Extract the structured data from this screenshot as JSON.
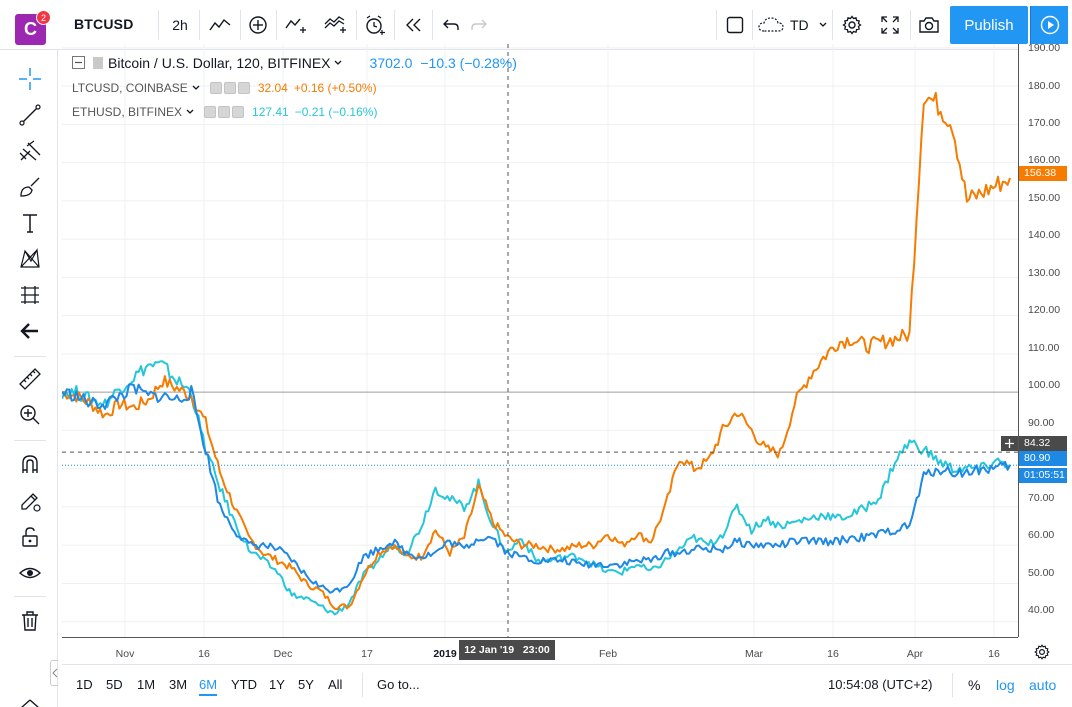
{
  "topbar": {
    "logo_letter": "C",
    "notif_count": "2",
    "symbol": "BTCUSD",
    "interval": "2h",
    "layout_name": "TD",
    "publish_label": "Publish"
  },
  "legend": {
    "main_title": "Bitcoin / U.S. Dollar, 120, BITFINEX",
    "main_value": "3702.0",
    "main_change": "−10.3 (−0.28%)",
    "series": [
      {
        "name": "LTCUSD, COINBASE",
        "value": "32.04",
        "change": "+0.16 (+0.50%)",
        "color": "#f57f17"
      },
      {
        "name": "ETHUSD, BITFINEX",
        "value": "127.41",
        "change": "−0.21 (−0.16%)",
        "color": "#26c6da"
      }
    ]
  },
  "price_axis": {
    "ticks": [
      "190.00",
      "180.00",
      "170.00",
      "160.00",
      "150.00",
      "140.00",
      "130.00",
      "120.00",
      "110.00",
      "100.00",
      "90.00",
      "80.00",
      "70.00",
      "60.00",
      "50.00",
      "40.00"
    ],
    "labels": {
      "ltc_last": "156.38",
      "crosshair": "84.32",
      "btc_last": "80.90",
      "countdown": "01:05:51"
    }
  },
  "time_axis": {
    "ticks": [
      "Nov",
      "16",
      "Dec",
      "17",
      "2019",
      "Feb",
      "Mar",
      "16",
      "Apr",
      "16"
    ],
    "crosshair_label": "12 Jan '19   23:00"
  },
  "bottom": {
    "ranges": [
      "1D",
      "5D",
      "1M",
      "3M",
      "6M",
      "YTD",
      "1Y",
      "5Y",
      "All"
    ],
    "active_range": "6M",
    "goto_label": "Go to...",
    "clock": "10:54:08 (UTC+2)",
    "percent_label": "%",
    "log_label": "log",
    "auto_label": "auto"
  },
  "colors": {
    "btc": "#1e88e5",
    "ltc": "#f57c00",
    "eth": "#26c6da",
    "accent": "#2196f3"
  },
  "chart_data": {
    "type": "line",
    "ylabel": "",
    "ylim": [
      36,
      191
    ],
    "x_ticks": [
      "Nov",
      "16",
      "Dec",
      "17",
      "2019",
      "Feb",
      "Mar",
      "16",
      "Apr",
      "16"
    ],
    "series": [
      {
        "name": "LTCUSD, COINBASE",
        "color": "#f57c00",
        "values": [
          100,
          99,
          97,
          94,
          97,
          96,
          98,
          103,
          101,
          99,
          92,
          79,
          70,
          62,
          58,
          56,
          54,
          50,
          48,
          44,
          44,
          52,
          58,
          60,
          57,
          57,
          64,
          58,
          62,
          75,
          66,
          62,
          60,
          60,
          59,
          59,
          60,
          60,
          63,
          60,
          63,
          61,
          70,
          83,
          80,
          82,
          90,
          95,
          90,
          85,
          84,
          97,
          104,
          109,
          113,
          114,
          112,
          113,
          114,
          115,
          178,
          175,
          170,
          150,
          152,
          154,
          156
        ]
      },
      {
        "name": "ETHUSD, BITFINEX",
        "color": "#26c6da",
        "values": [
          100,
          100,
          98,
          97,
          101,
          104,
          107,
          107,
          103,
          100,
          85,
          75,
          66,
          59,
          56,
          53,
          47,
          46,
          44,
          42,
          45,
          52,
          56,
          60,
          58,
          65,
          75,
          72,
          70,
          76,
          65,
          58,
          62,
          56,
          56,
          57,
          57,
          55,
          53,
          53,
          55,
          53,
          56,
          59,
          62,
          60,
          63,
          70,
          64,
          67,
          65,
          66,
          67,
          68,
          67,
          68,
          70,
          73,
          82,
          87,
          85,
          82,
          80,
          80,
          80,
          82,
          81
        ]
      },
      {
        "name": "BTCUSD",
        "color": "#1e88e5",
        "values": [
          100,
          99,
          97,
          97,
          99,
          101,
          99,
          99,
          98,
          100,
          85,
          70,
          64,
          60,
          60,
          59,
          56,
          52,
          49,
          48,
          50,
          57,
          59,
          61,
          58,
          57,
          58,
          61,
          59,
          62,
          62,
          58,
          57,
          56,
          56,
          56,
          55,
          55,
          55,
          55,
          56,
          56,
          58,
          58,
          59,
          59,
          59,
          61,
          60,
          60,
          60,
          61,
          61,
          61,
          61,
          62,
          62,
          63,
          64,
          65,
          78,
          80,
          79,
          79,
          80,
          80,
          80.9
        ]
      }
    ]
  }
}
